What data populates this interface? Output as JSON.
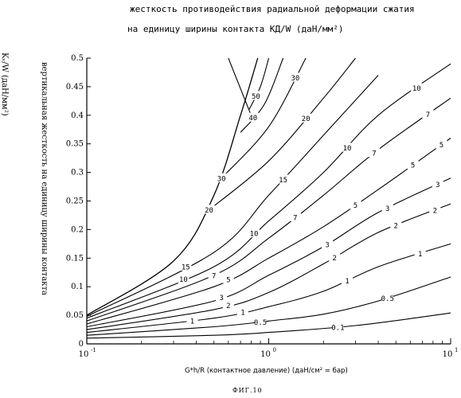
{
  "title_line1": "жесткость противодействия радиальной деформации сжатия",
  "title_line2": "на единицу ширины контакта KД/W (даН/мм²)",
  "ylabel_main": "вертикальная жесткость на единицу ширины контакта",
  "ylabel_unit": "Kᵥ/W (даН/мм²)",
  "xlabel": "G*h/R (контактное давление) (даН/см² = бар)",
  "figure_label": "ФИГ.10",
  "chart_data": {
    "type": "line",
    "title": "жесткость противодействия радиальной деформации сжатия на единицу ширины контакта KД/W (даН/мм²)",
    "xlabel": "G*h/R (контактное давление) (даН/см² = бар)",
    "ylabel": "вертикальная жесткость на единицу ширины контакта Kᵥ/W (даН/мм²)",
    "xscale": "log",
    "xlim": [
      0.1,
      10
    ],
    "ylim": [
      0,
      0.5
    ],
    "grid": false,
    "x_ticks": [
      {
        "value": 0.1,
        "label": "10",
        "exp": "-1"
      },
      {
        "value": 1,
        "label": "10",
        "exp": "0"
      },
      {
        "value": 10,
        "label": "10",
        "exp": "1"
      }
    ],
    "y_ticks": [
      "0",
      "0.05",
      "0.1",
      "0.15",
      "0.2",
      "0.25",
      "0.3",
      "0.35",
      "0.4",
      "0.45",
      "0.5"
    ],
    "boundary": {
      "name": "",
      "points": [
        [
          0.1,
          0.05
        ],
        [
          0.3,
          0.145
        ],
        [
          0.5,
          0.26
        ],
        [
          0.7,
          0.4
        ],
        [
          0.87,
          0.5
        ]
      ]
    },
    "upper_boundary": {
      "points": [
        [
          0.6,
          0.5
        ],
        [
          0.8,
          0.4
        ]
      ]
    },
    "series": [
      {
        "name": "0.1",
        "label_x": 6.0,
        "points": [
          [
            0.1,
            0.01
          ],
          [
            0.5,
            0.015
          ],
          [
            1,
            0.02
          ],
          [
            3,
            0.032
          ],
          [
            10,
            0.054
          ]
        ],
        "extra_labels": [
          {
            "x": 2.4,
            "text": "0.1"
          }
        ]
      },
      {
        "name": "0.5",
        "points": [
          [
            0.1,
            0.015
          ],
          [
            0.5,
            0.03
          ],
          [
            1,
            0.04
          ],
          [
            2,
            0.052
          ],
          [
            4,
            0.075
          ],
          [
            10,
            0.117
          ]
        ],
        "extra_labels": [
          {
            "x": 0.9,
            "text": "0.5"
          },
          {
            "x": 4.5,
            "text": "0.5"
          }
        ]
      },
      {
        "name": "1",
        "points": [
          [
            0.1,
            0.02
          ],
          [
            0.5,
            0.045
          ],
          [
            1,
            0.065
          ],
          [
            2,
            0.092
          ],
          [
            4,
            0.135
          ],
          [
            10,
            0.175
          ]
        ],
        "extra_labels": [
          {
            "x": 0.38,
            "text": "1"
          },
          {
            "x": 0.72,
            "text": "1"
          },
          {
            "x": 2.7,
            "text": "1"
          },
          {
            "x": 6.8,
            "text": "1"
          }
        ]
      },
      {
        "name": "2",
        "points": [
          [
            0.1,
            0.025
          ],
          [
            0.5,
            0.06
          ],
          [
            1,
            0.09
          ],
          [
            2,
            0.14
          ],
          [
            4,
            0.195
          ],
          [
            10,
            0.245
          ]
        ],
        "extra_labels": [
          {
            "x": 0.6,
            "text": "2"
          },
          {
            "x": 2.3,
            "text": "2"
          },
          {
            "x": 5.0,
            "text": "2"
          },
          {
            "x": 8.2,
            "text": "2"
          }
        ]
      },
      {
        "name": "3",
        "points": [
          [
            0.1,
            0.03
          ],
          [
            0.5,
            0.075
          ],
          [
            1,
            0.12
          ],
          [
            2,
            0.17
          ],
          [
            4,
            0.23
          ],
          [
            10,
            0.29
          ]
        ],
        "extra_labels": [
          {
            "x": 0.55,
            "text": "3"
          },
          {
            "x": 2.1,
            "text": "3"
          },
          {
            "x": 4.5,
            "text": "3"
          },
          {
            "x": 8.5,
            "text": "3"
          }
        ]
      },
      {
        "name": "5",
        "points": [
          [
            0.1,
            0.035
          ],
          [
            0.5,
            0.1
          ],
          [
            1,
            0.15
          ],
          [
            2,
            0.205
          ],
          [
            4,
            0.27
          ],
          [
            10,
            0.36
          ]
        ],
        "extra_labels": [
          {
            "x": 0.6,
            "text": "5"
          },
          {
            "x": 3.0,
            "text": "5"
          },
          {
            "x": 6.2,
            "text": "5"
          },
          {
            "x": 8.9,
            "text": "5"
          }
        ]
      },
      {
        "name": "7",
        "points": [
          [
            0.1,
            0.04
          ],
          [
            0.5,
            0.12
          ],
          [
            1,
            0.185
          ],
          [
            2,
            0.26
          ],
          [
            4,
            0.34
          ],
          [
            10,
            0.43
          ]
        ],
        "extra_labels": [
          {
            "x": 0.5,
            "text": "7"
          },
          {
            "x": 1.4,
            "text": "7"
          },
          {
            "x": 3.8,
            "text": "7"
          },
          {
            "x": 7.5,
            "text": "7"
          }
        ]
      },
      {
        "name": "10",
        "points": [
          [
            0.1,
            0.045
          ],
          [
            0.5,
            0.135
          ],
          [
            1,
            0.215
          ],
          [
            2,
            0.3
          ],
          [
            4,
            0.4
          ],
          [
            10,
            0.49
          ]
        ],
        "extra_labels": [
          {
            "x": 0.34,
            "text": "10"
          },
          {
            "x": 0.83,
            "text": "10"
          },
          {
            "x": 2.7,
            "text": "10"
          },
          {
            "x": 6.5,
            "text": "10"
          }
        ]
      },
      {
        "name": "15",
        "points": [
          [
            0.1,
            0.048
          ],
          [
            0.5,
            0.16
          ],
          [
            1,
            0.26
          ],
          [
            2,
            0.365
          ],
          [
            4,
            0.47
          ]
        ],
        "extra_labels": [
          {
            "x": 0.35,
            "text": "15"
          },
          {
            "x": 1.2,
            "text": "15"
          }
        ]
      },
      {
        "name": "20",
        "points": [
          [
            0.45,
            0.23
          ],
          [
            1,
            0.32
          ],
          [
            2,
            0.43
          ],
          [
            3,
            0.5
          ]
        ],
        "extra_labels": [
          {
            "x": 0.47,
            "text": "20"
          },
          {
            "x": 1.6,
            "text": "20"
          }
        ]
      },
      {
        "name": "30",
        "points": [
          [
            0.55,
            0.29
          ],
          [
            1,
            0.38
          ],
          [
            1.6,
            0.5
          ]
        ],
        "extra_labels": [
          {
            "x": 0.55,
            "text": "30"
          },
          {
            "x": 1.4,
            "text": "30"
          }
        ]
      },
      {
        "name": "40",
        "points": [
          [
            0.7,
            0.37
          ],
          [
            0.95,
            0.42
          ],
          [
            1.2,
            0.5
          ]
        ],
        "extra_labels": [
          {
            "x": 0.82,
            "text": "40"
          }
        ]
      },
      {
        "name": "50",
        "points": [
          [
            0.78,
            0.41
          ],
          [
            0.9,
            0.45
          ],
          [
            1.0,
            0.5
          ]
        ],
        "extra_labels": [
          {
            "x": 0.85,
            "text": "50"
          }
        ]
      }
    ]
  }
}
